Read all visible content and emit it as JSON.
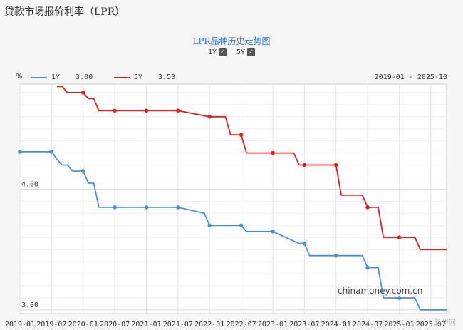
{
  "page_title": "贷款市场报价利率（LPR）",
  "chart": {
    "title": "LPR品种历史走势图",
    "toggles": [
      {
        "label": "1Y",
        "checked": true
      },
      {
        "label": "5Y",
        "checked": true
      }
    ],
    "y_unit_label": "%",
    "range_label": "2019-01 - 2025-10",
    "legend": [
      {
        "name": "1Y",
        "value": "3.00",
        "color": "#4a90d9"
      },
      {
        "name": "5Y",
        "value": "3.50",
        "color": "#e02020"
      }
    ],
    "watermark": "chinamoney.com.cn",
    "watermark_logo": "新华网"
  },
  "chart_data": {
    "type": "line",
    "x_ticks": [
      "2019-01",
      "2019-07",
      "2020-01",
      "2020-07",
      "2021-01",
      "2021-07",
      "2022-01",
      "2022-07",
      "2023-01",
      "2023-07",
      "2024-01",
      "2024-07",
      "2025-01",
      "2025-07"
    ],
    "y_ticks": [
      "4.00",
      "3.00"
    ],
    "ylim": [
      2.97,
      4.87
    ],
    "xlim": [
      "2019-01",
      "2025-10"
    ],
    "grid": true,
    "series": [
      {
        "name": "1Y",
        "color": "#4a90d9",
        "points": [
          [
            "2019-01",
            4.31
          ],
          [
            "2019-07",
            4.31
          ],
          [
            "2019-08",
            4.25
          ],
          [
            "2019-09",
            4.2
          ],
          [
            "2019-10",
            4.2
          ],
          [
            "2019-11",
            4.15
          ],
          [
            "2019-12",
            4.15
          ],
          [
            "2020-01",
            4.15
          ],
          [
            "2020-02",
            4.05
          ],
          [
            "2020-03",
            4.05
          ],
          [
            "2020-04",
            3.85
          ],
          [
            "2020-07",
            3.85
          ],
          [
            "2021-01",
            3.85
          ],
          [
            "2021-07",
            3.85
          ],
          [
            "2021-12",
            3.8
          ],
          [
            "2022-01",
            3.7
          ],
          [
            "2022-07",
            3.7
          ],
          [
            "2022-08",
            3.65
          ],
          [
            "2023-01",
            3.65
          ],
          [
            "2023-06",
            3.55
          ],
          [
            "2023-07",
            3.55
          ],
          [
            "2023-08",
            3.45
          ],
          [
            "2024-01",
            3.45
          ],
          [
            "2024-06",
            3.45
          ],
          [
            "2024-07",
            3.35
          ],
          [
            "2024-09",
            3.35
          ],
          [
            "2024-10",
            3.1
          ],
          [
            "2025-01",
            3.1
          ],
          [
            "2025-04",
            3.1
          ],
          [
            "2025-05",
            3.0
          ],
          [
            "2025-10",
            3.0
          ]
        ]
      },
      {
        "name": "5Y",
        "color": "#e02020",
        "points": [
          [
            "2019-08",
            4.85
          ],
          [
            "2019-09",
            4.85
          ],
          [
            "2019-10",
            4.8
          ],
          [
            "2019-11",
            4.8
          ],
          [
            "2020-01",
            4.8
          ],
          [
            "2020-02",
            4.75
          ],
          [
            "2020-03",
            4.75
          ],
          [
            "2020-04",
            4.65
          ],
          [
            "2020-07",
            4.65
          ],
          [
            "2021-01",
            4.65
          ],
          [
            "2021-07",
            4.65
          ],
          [
            "2022-01",
            4.6
          ],
          [
            "2022-04",
            4.6
          ],
          [
            "2022-05",
            4.45
          ],
          [
            "2022-07",
            4.45
          ],
          [
            "2022-08",
            4.3
          ],
          [
            "2023-01",
            4.3
          ],
          [
            "2023-05",
            4.3
          ],
          [
            "2023-06",
            4.2
          ],
          [
            "2023-07",
            4.2
          ],
          [
            "2024-01",
            4.2
          ],
          [
            "2024-02",
            3.95
          ],
          [
            "2024-06",
            3.95
          ],
          [
            "2024-07",
            3.85
          ],
          [
            "2024-09",
            3.85
          ],
          [
            "2024-10",
            3.6
          ],
          [
            "2025-01",
            3.6
          ],
          [
            "2025-04",
            3.6
          ],
          [
            "2025-05",
            3.5
          ],
          [
            "2025-10",
            3.5
          ]
        ]
      }
    ]
  }
}
